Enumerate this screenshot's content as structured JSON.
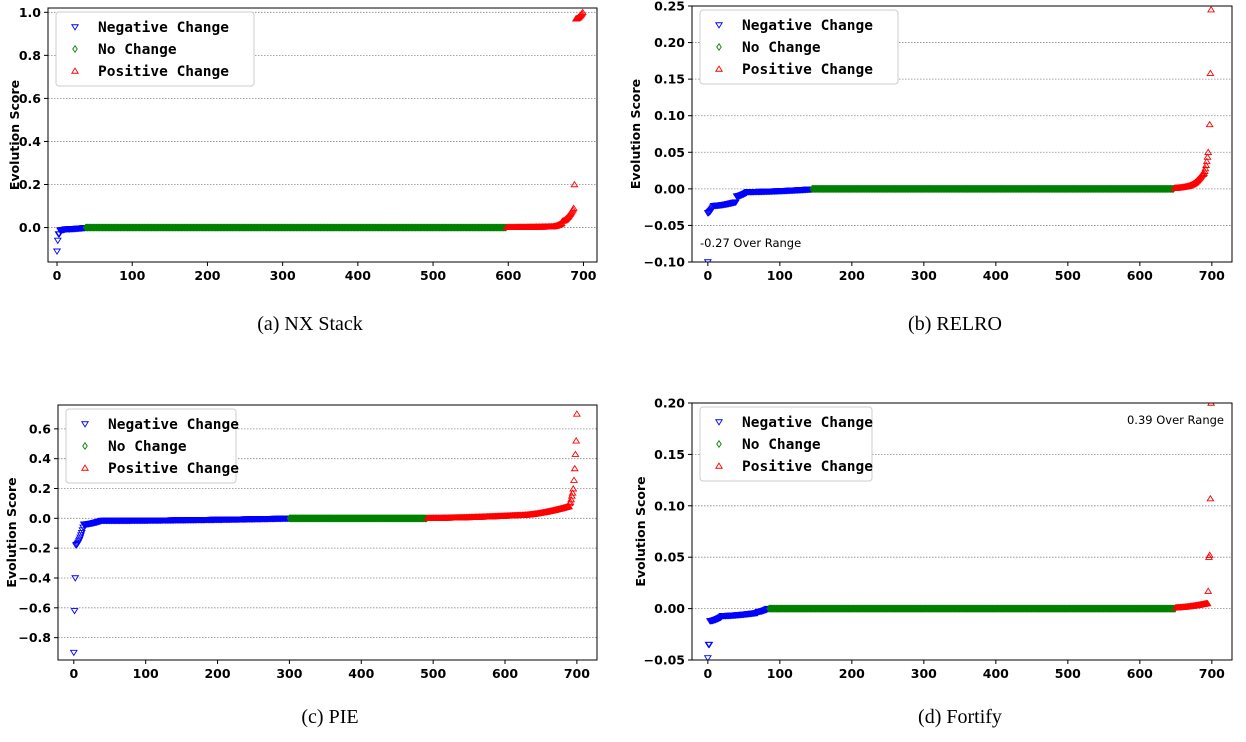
{
  "colors": {
    "negative": "#0000ff",
    "nochange": "#008000",
    "positive": "#ff0000",
    "grid": "#888888",
    "axis": "#000000"
  },
  "chart_data": [
    {
      "type": "scatter",
      "caption": "(a) NX Stack",
      "ylabel": "Evolution Score",
      "xlim": [
        -12,
        718
      ],
      "ylim": [
        -0.16,
        1.02
      ],
      "xticks": [
        0,
        100,
        200,
        300,
        400,
        500,
        600,
        700
      ],
      "yticks": [
        0.0,
        0.2,
        0.4,
        0.6,
        0.8,
        1.0
      ],
      "ytick_labels": [
        "0.0",
        "0.2",
        "0.4",
        "0.6",
        "0.8",
        "1.0"
      ],
      "grid": "horizontal-dotted",
      "legend_placement": "upper-left",
      "annotation": "",
      "series": [
        {
          "name": "Negative Change",
          "marker": "triangle-down",
          "color": "#0000ff",
          "segments": [
            [
              0,
              1,
              -0.11,
              -0.11
            ],
            [
              1,
              2,
              -0.06,
              -0.06
            ],
            [
              2,
              4,
              -0.03,
              -0.03
            ],
            [
              4,
              12,
              -0.012,
              -0.008
            ],
            [
              12,
              38,
              -0.007,
              -0.001
            ]
          ]
        },
        {
          "name": "No Change",
          "marker": "diamond",
          "color": "#008000",
          "segments": [
            [
              38,
              598,
              0.0,
              0.0
            ]
          ]
        },
        {
          "name": "Positive Change",
          "marker": "triangle-up",
          "color": "#ff0000",
          "segments": [
            [
              598,
              660,
              0.001,
              0.004
            ],
            [
              660,
              672,
              0.005,
              0.02
            ],
            [
              672,
              688,
              0.03,
              0.09
            ],
            [
              688,
              689,
              0.2,
              0.2
            ],
            [
              690,
              700,
              0.97,
              1.0
            ]
          ]
        }
      ]
    },
    {
      "type": "scatter",
      "caption": "(b) RELRO",
      "ylabel": "Evolution Score",
      "xlim": [
        -22,
        728
      ],
      "ylim": [
        -0.1,
        0.25
      ],
      "xticks": [
        0,
        100,
        200,
        300,
        400,
        500,
        600,
        700
      ],
      "yticks": [
        -0.1,
        -0.05,
        0.0,
        0.05,
        0.1,
        0.15,
        0.2,
        0.25
      ],
      "ytick_labels": [
        "−0.10",
        "−0.05",
        "0.00",
        "0.05",
        "0.10",
        "0.15",
        "0.20",
        "0.25"
      ],
      "grid": "horizontal-dotted",
      "legend_placement": "upper-left",
      "annotation": "-0.27 Over Range",
      "annotation_anchor": "bottom-left",
      "series": [
        {
          "name": "Negative Change",
          "marker": "triangle-down",
          "color": "#0000ff",
          "segments": [
            [
              0,
              1,
              -0.1,
              -0.1
            ],
            [
              0,
              8,
              -0.033,
              -0.025
            ],
            [
              8,
              40,
              -0.023,
              -0.018
            ],
            [
              40,
              55,
              -0.01,
              -0.005
            ],
            [
              55,
              145,
              -0.004,
              -0.0005
            ]
          ]
        },
        {
          "name": "No Change",
          "marker": "diamond",
          "color": "#008000",
          "segments": [
            [
              145,
              648,
              0.0,
              0.0
            ]
          ]
        },
        {
          "name": "Positive Change",
          "marker": "triangle-up",
          "color": "#ff0000",
          "segments": [
            [
              648,
              670,
              0.001,
              0.004
            ],
            [
              670,
              688,
              0.005,
              0.02
            ],
            [
              688,
              696,
              0.02,
              0.05
            ],
            [
              697,
              698,
              0.088,
              0.1
            ],
            [
              698,
              699,
              0.158,
              0.175
            ],
            [
              699,
              700,
              0.245,
              0.245
            ]
          ]
        }
      ]
    },
    {
      "type": "scatter",
      "caption": "(c) PIE",
      "ylabel": "Evolution Score",
      "xlim": [
        -22,
        728
      ],
      "ylim": [
        -0.95,
        0.76
      ],
      "xticks": [
        0,
        100,
        200,
        300,
        400,
        500,
        600,
        700
      ],
      "yticks": [
        -0.8,
        -0.6,
        -0.4,
        -0.2,
        0.0,
        0.2,
        0.4,
        0.6
      ],
      "ytick_labels": [
        "−0.8",
        "−0.6",
        "−0.4",
        "−0.2",
        "0.0",
        "0.2",
        "0.4",
        "0.6"
      ],
      "grid": "horizontal-dotted",
      "legend_placement": "upper-left",
      "annotation": "",
      "series": [
        {
          "name": "Negative Change",
          "marker": "triangle-down",
          "color": "#0000ff",
          "segments": [
            [
              0,
              1,
              -0.9,
              -0.9
            ],
            [
              1,
              2,
              -0.62,
              -0.62
            ],
            [
              2,
              3,
              -0.4,
              -0.4
            ],
            [
              3,
              14,
              -0.18,
              -0.06
            ],
            [
              14,
              40,
              -0.04,
              -0.015
            ],
            [
              40,
              300,
              -0.015,
              0.0
            ]
          ]
        },
        {
          "name": "No Change",
          "marker": "diamond",
          "color": "#008000",
          "segments": [
            [
              300,
              492,
              0.0,
              0.0
            ]
          ]
        },
        {
          "name": "Positive Change",
          "marker": "triangle-up",
          "color": "#ff0000",
          "segments": [
            [
              492,
              620,
              0.001,
              0.02
            ],
            [
              620,
              690,
              0.02,
              0.08
            ],
            [
              690,
              694,
              0.1,
              0.15
            ],
            [
              694,
              699,
              0.17,
              0.43
            ],
            [
              699,
              700,
              0.52,
              0.52
            ],
            [
              700,
              701,
              0.7,
              0.7
            ]
          ]
        }
      ]
    },
    {
      "type": "scatter",
      "caption": "(d) Fortify",
      "ylabel": "Evolution Score",
      "xlim": [
        -22,
        728
      ],
      "ylim": [
        -0.05,
        0.2
      ],
      "xticks": [
        0,
        100,
        200,
        300,
        400,
        500,
        600,
        700
      ],
      "yticks": [
        -0.05,
        0.0,
        0.05,
        0.1,
        0.15,
        0.2
      ],
      "ytick_labels": [
        "−0.05",
        "0.00",
        "0.05",
        "0.10",
        "0.15",
        "0.20"
      ],
      "grid": "horizontal-dotted",
      "legend_placement": "upper-left",
      "annotation": "0.39 Over Range",
      "annotation_anchor": "top-right",
      "series": [
        {
          "name": "Negative Change",
          "marker": "triangle-down",
          "color": "#0000ff",
          "segments": [
            [
              0,
              1,
              -0.048,
              -0.048
            ],
            [
              1,
              3,
              -0.035,
              -0.035
            ],
            [
              3,
              20,
              -0.012,
              -0.008
            ],
            [
              20,
              70,
              -0.007,
              -0.004
            ],
            [
              70,
              85,
              -0.003,
              0.0
            ]
          ]
        },
        {
          "name": "No Change",
          "marker": "diamond",
          "color": "#008000",
          "segments": [
            [
              85,
              650,
              0.0,
              0.0
            ]
          ]
        },
        {
          "name": "Positive Change",
          "marker": "triangle-up",
          "color": "#ff0000",
          "segments": [
            [
              650,
              694,
              0.001,
              0.005
            ],
            [
              694,
              696,
              0.005,
              0.017
            ],
            [
              696,
              698,
              0.05,
              0.052
            ],
            [
              698,
              699,
              0.107,
              0.107
            ],
            [
              699,
              700,
              0.2,
              0.2
            ]
          ]
        }
      ]
    }
  ]
}
